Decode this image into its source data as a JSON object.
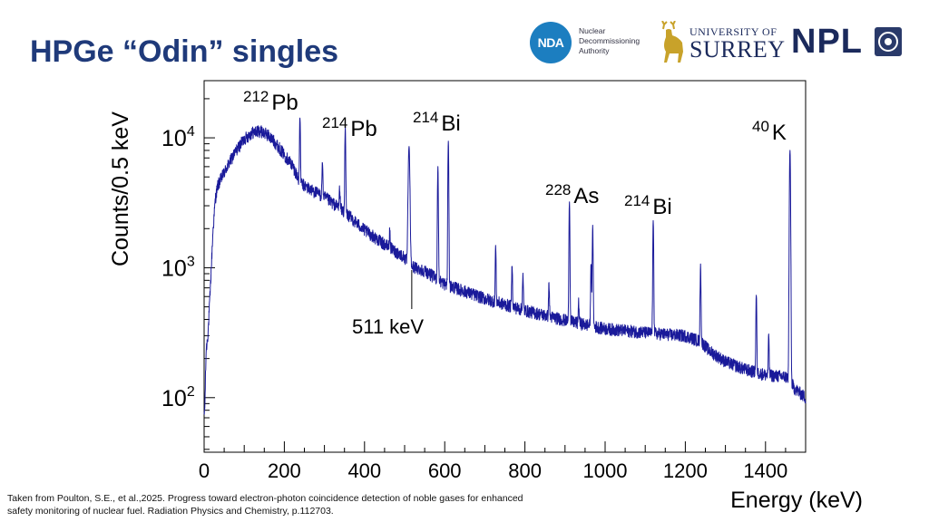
{
  "slide": {
    "title": "HPGe “Odin” singles",
    "citation_line1": "Taken from Poulton, S.E., et al.,2025. Progress toward electron-photon coincidence detection of noble gases for enhanced",
    "citation_line2": "safety monitoring of nuclear fuel. Radiation Physics and Chemistry, p.112703."
  },
  "logos": {
    "nda_mark": "NDA",
    "nda_line1": "Nuclear",
    "nda_line2": "Decommissioning",
    "nda_line3": "Authority",
    "surrey_line1": "UNIVERSITY OF",
    "surrey_line2": "SURREY",
    "npl": "NPL"
  },
  "colors": {
    "title": "#1f3a7a",
    "spectrum": "#1a1a9a",
    "axis": "#000000",
    "nda_blue": "#1c7ec0",
    "surrey_gold": "#c8a22a",
    "brand_navy": "#1b2a5c"
  },
  "chart_data": {
    "type": "line",
    "title": "",
    "xlabel": "Energy (keV)",
    "ylabel": "Counts/0.5 keV",
    "xlim": [
      0,
      1500
    ],
    "ylim_log10": [
      1.58,
      4.44
    ],
    "yscale": "log",
    "grid": false,
    "x_ticks": [
      0,
      200,
      400,
      600,
      800,
      1000,
      1200,
      1400
    ],
    "y_ticks": [
      {
        "value": 100,
        "base": "10",
        "exp": "2"
      },
      {
        "value": 1000,
        "base": "10",
        "exp": "3"
      },
      {
        "value": 10000,
        "base": "10",
        "exp": "4"
      }
    ],
    "series": [
      {
        "name": "HPGe singles",
        "continuum": {
          "x": [
            0,
            2,
            5,
            10,
            15,
            22,
            28,
            34,
            40,
            60,
            80,
            100,
            120,
            140,
            160,
            180,
            200,
            220,
            240,
            260,
            300,
            350,
            400,
            450,
            500,
            510,
            520,
            550,
            600,
            700,
            800,
            900,
            1000,
            1100,
            1150,
            1200,
            1240,
            1260,
            1300,
            1350,
            1400,
            1450,
            1462,
            1470,
            1500
          ],
          "y": [
            70,
            90,
            230,
            320,
            640,
            1900,
            3400,
            4300,
            4700,
            6200,
            8000,
            9800,
            11000,
            11300,
            10500,
            9000,
            7400,
            6200,
            4500,
            4100,
            3500,
            2700,
            1950,
            1520,
            1200,
            1050,
            1020,
            950,
            750,
            580,
            470,
            395,
            340,
            318,
            308,
            300,
            270,
            230,
            190,
            165,
            150,
            145,
            140,
            120,
            100
          ]
        },
        "peaks": [
          {
            "energy": 239,
            "counts": 14500,
            "sigma": 1.0
          },
          {
            "energy": 295,
            "counts": 6500,
            "sigma": 1.0
          },
          {
            "energy": 338,
            "counts": 4200,
            "sigma": 1.0
          },
          {
            "energy": 352,
            "counts": 12000,
            "sigma": 1.0
          },
          {
            "energy": 463,
            "counts": 1950,
            "sigma": 1.0
          },
          {
            "energy": 511,
            "counts": 8500,
            "sigma": 1.8
          },
          {
            "energy": 583,
            "counts": 6000,
            "sigma": 1.0
          },
          {
            "energy": 609,
            "counts": 9500,
            "sigma": 1.0
          },
          {
            "energy": 727,
            "counts": 1450,
            "sigma": 1.0
          },
          {
            "energy": 768,
            "counts": 1050,
            "sigma": 1.0
          },
          {
            "energy": 795,
            "counts": 880,
            "sigma": 1.0
          },
          {
            "energy": 860,
            "counts": 760,
            "sigma": 1.0
          },
          {
            "energy": 911,
            "counts": 3200,
            "sigma": 1.0
          },
          {
            "energy": 934,
            "counts": 550,
            "sigma": 1.0
          },
          {
            "energy": 965,
            "counts": 1100,
            "sigma": 1.0
          },
          {
            "energy": 969,
            "counts": 2100,
            "sigma": 1.0
          },
          {
            "energy": 1120,
            "counts": 2300,
            "sigma": 1.0
          },
          {
            "energy": 1238,
            "counts": 1050,
            "sigma": 1.0
          },
          {
            "energy": 1377,
            "counts": 620,
            "sigma": 1.0
          },
          {
            "energy": 1408,
            "counts": 300,
            "sigma": 1.0
          },
          {
            "energy": 1461,
            "counts": 8000,
            "sigma": 1.2
          }
        ]
      }
    ],
    "annotations": [
      {
        "id": "pb212",
        "mass": "212",
        "symbol": "Pb",
        "energy": 239
      },
      {
        "id": "pb214",
        "mass": "214",
        "symbol": "Pb",
        "energy": 352
      },
      {
        "id": "bi214a",
        "mass": "214",
        "symbol": "Bi",
        "energy": 609
      },
      {
        "id": "ac228",
        "mass": "228",
        "symbol": "As",
        "energy": 911
      },
      {
        "id": "bi214b",
        "mass": "214",
        "symbol": "Bi",
        "energy": 1120
      },
      {
        "id": "k40",
        "mass": "40",
        "symbol": "K",
        "energy": 1461
      },
      {
        "id": "annihilation",
        "label": "511 keV",
        "energy": 511
      }
    ]
  }
}
